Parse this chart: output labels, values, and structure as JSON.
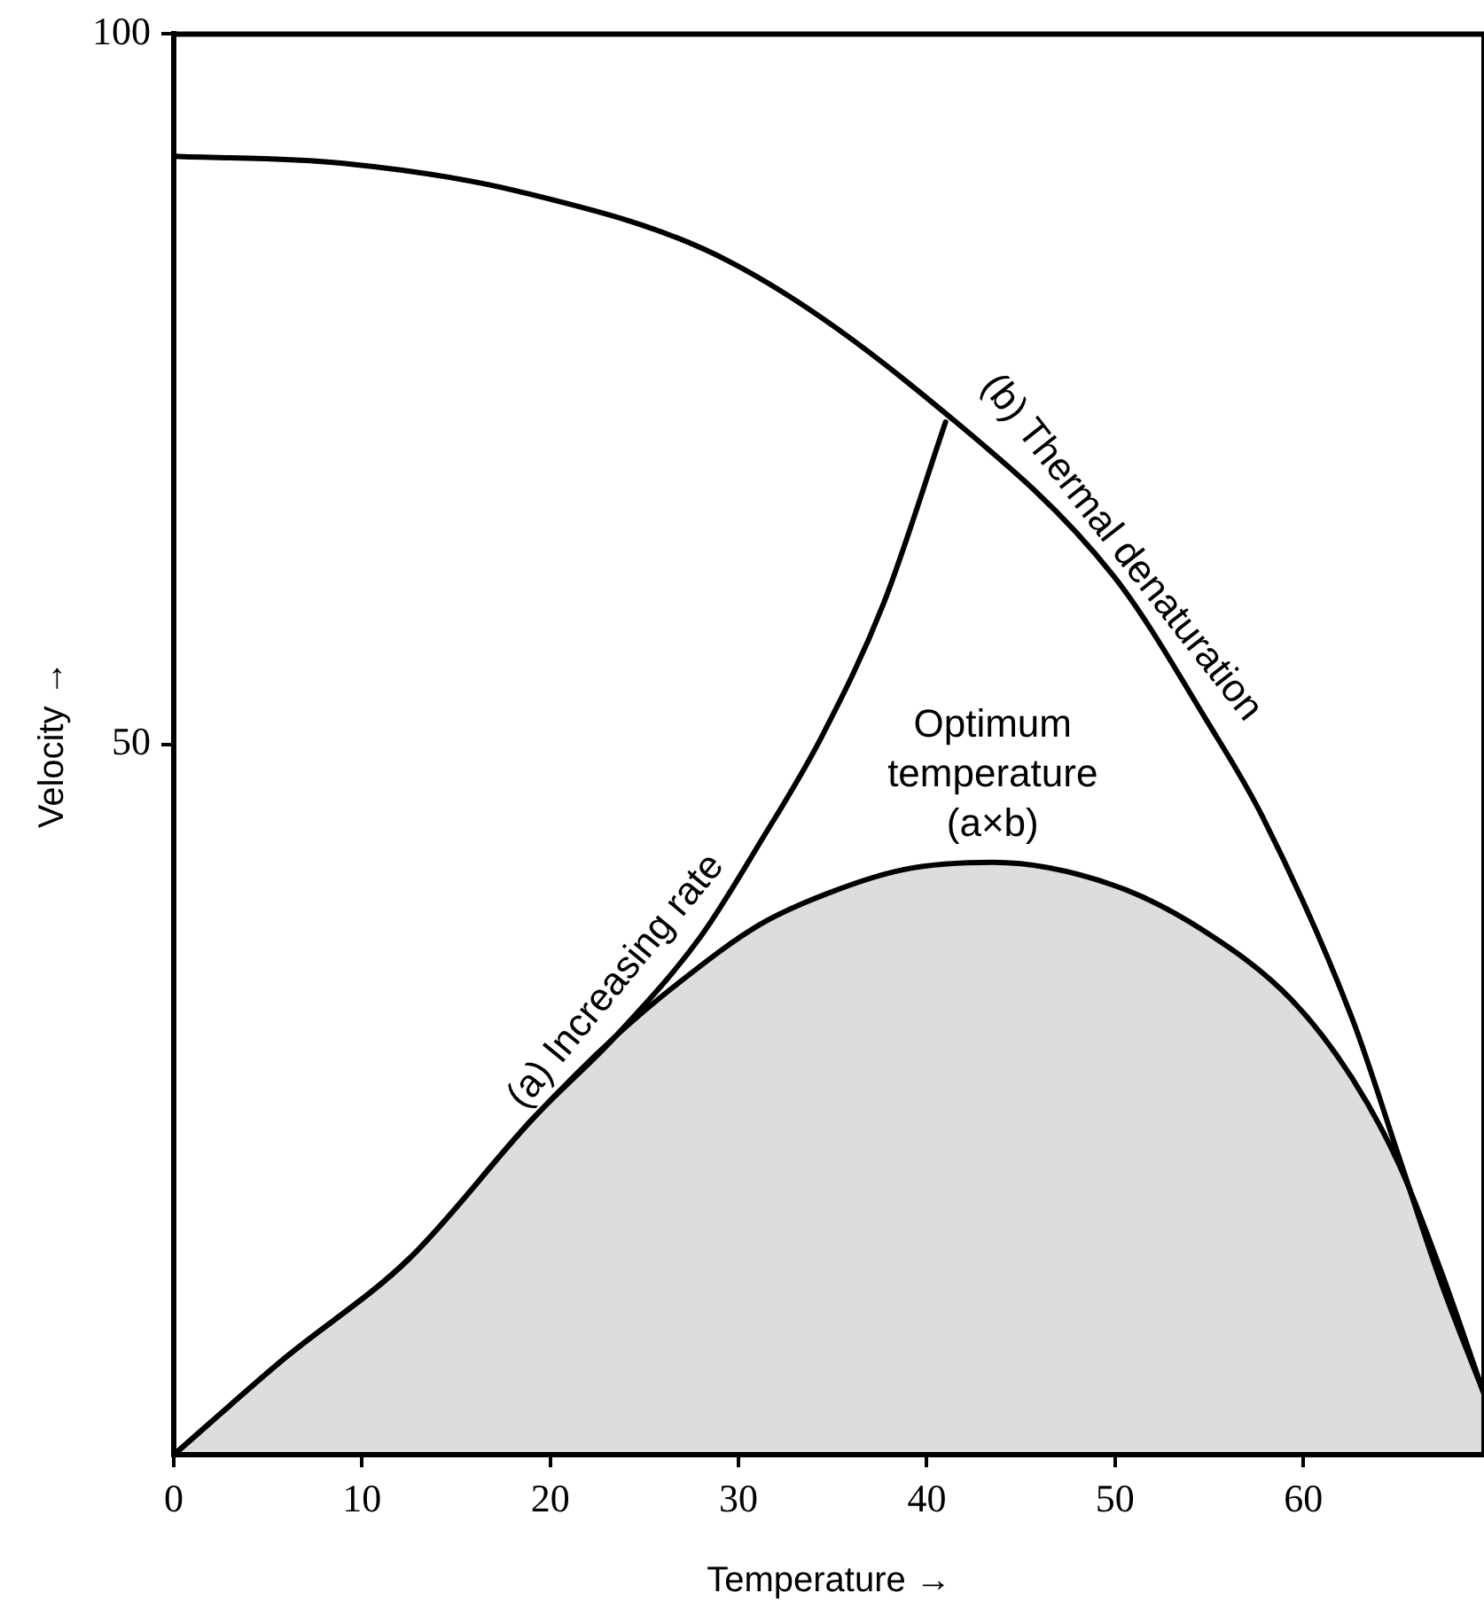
{
  "chart_data": {
    "type": "line",
    "xlabel": "Temperature →",
    "ylabel": "Velocity →",
    "xlim": [
      0,
      69.6
    ],
    "ylim": [
      0,
      100
    ],
    "xticks": [
      0,
      10,
      20,
      30,
      40,
      50,
      60
    ],
    "yticks": [
      50,
      100
    ],
    "grid": false,
    "legend": false,
    "marker": "none",
    "line_style": "solid",
    "series": [
      {
        "name": "(a) Increasing rate",
        "color": "#000000",
        "x": [
          0,
          5.8,
          12.5,
          19.1,
          23.5,
          28,
          31.1,
          34.4,
          37.7,
          41
        ],
        "values": [
          0,
          6.7,
          13.8,
          23.7,
          29.5,
          36.5,
          43,
          50.5,
          59.9,
          72.7
        ]
      },
      {
        "name": "(b) Thermal denaturation",
        "color": "#000000",
        "x": [
          0,
          9,
          18.4,
          29.5,
          41,
          49.9,
          55,
          57.8,
          62.6,
          65.1,
          67.3,
          69.6
        ],
        "values": [
          91.4,
          90.9,
          88.9,
          84,
          73.3,
          61.9,
          51.4,
          45,
          30.7,
          20.9,
          12.2,
          4.3
        ]
      },
      {
        "name": "Optimum temperature (a×b)",
        "type": "area",
        "color": "#000000",
        "x": [
          0,
          5.8,
          12.5,
          19.1,
          23.5,
          26.8,
          31.1,
          34.7,
          38.8,
          43.5,
          49.9,
          54.7,
          59.4,
          62.6,
          65.1,
          67.3,
          69.6
        ],
        "values": [
          0,
          6.7,
          13.8,
          23.7,
          29.5,
          33.2,
          37.3,
          39.5,
          41.2,
          41.7,
          40.1,
          36.9,
          32,
          26.5,
          20.4,
          13,
          4.3
        ]
      }
    ]
  }
}
